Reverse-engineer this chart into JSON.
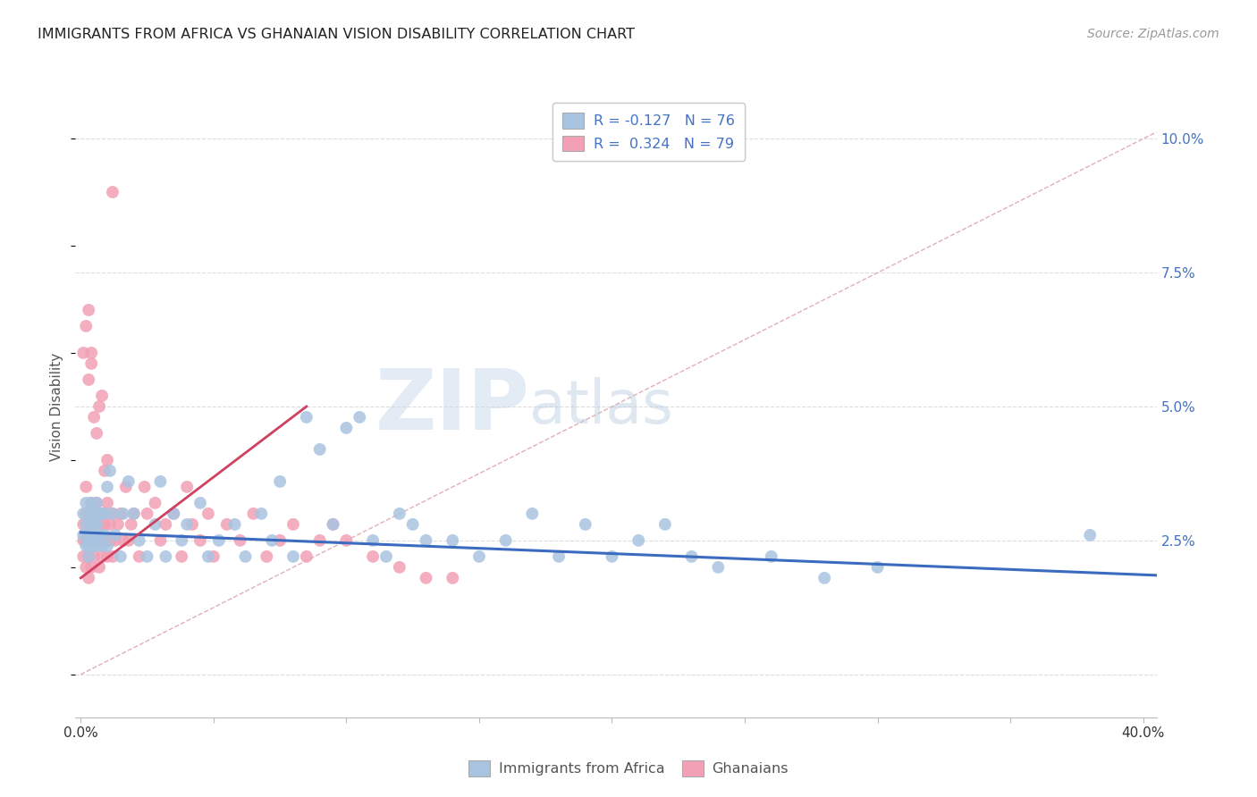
{
  "title": "IMMIGRANTS FROM AFRICA VS GHANAIAN VISION DISABILITY CORRELATION CHART",
  "source": "Source: ZipAtlas.com",
  "ylabel": "Vision Disability",
  "y_ticks": [
    0.0,
    0.025,
    0.05,
    0.075,
    0.1
  ],
  "y_tick_labels": [
    "",
    "2.5%",
    "5.0%",
    "7.5%",
    "10.0%"
  ],
  "x_lim": [
    -0.002,
    0.405
  ],
  "y_lim": [
    -0.008,
    0.108
  ],
  "legend_label_blue": "Immigrants from Africa",
  "legend_label_pink": "Ghanaians",
  "blue_color": "#a8c4e0",
  "pink_color": "#f2a0b5",
  "blue_line_color": "#3a6bbf",
  "pink_line_color": "#d04060",
  "dashed_line_color": "#e0b0b8",
  "watermark_zip": "ZIP",
  "watermark_atlas": "atlas",
  "blue_trend_x": [
    0.0,
    0.405
  ],
  "blue_trend_y": [
    0.0265,
    0.0185
  ],
  "pink_trend_x": [
    0.0,
    0.085
  ],
  "pink_trend_y": [
    0.018,
    0.05
  ],
  "diag_line_x": [
    0.0,
    0.405
  ],
  "diag_line_y": [
    0.0,
    0.1012
  ],
  "blue_x": [
    0.001,
    0.001,
    0.002,
    0.002,
    0.002,
    0.003,
    0.003,
    0.003,
    0.003,
    0.004,
    0.004,
    0.004,
    0.005,
    0.005,
    0.005,
    0.005,
    0.006,
    0.006,
    0.006,
    0.007,
    0.007,
    0.008,
    0.008,
    0.009,
    0.009,
    0.01,
    0.01,
    0.011,
    0.012,
    0.013,
    0.015,
    0.016,
    0.018,
    0.02,
    0.022,
    0.025,
    0.028,
    0.03,
    0.032,
    0.035,
    0.038,
    0.04,
    0.045,
    0.048,
    0.052,
    0.058,
    0.062,
    0.068,
    0.072,
    0.075,
    0.08,
    0.085,
    0.09,
    0.095,
    0.1,
    0.105,
    0.11,
    0.115,
    0.12,
    0.125,
    0.13,
    0.14,
    0.15,
    0.16,
    0.17,
    0.18,
    0.19,
    0.2,
    0.21,
    0.22,
    0.23,
    0.24,
    0.26,
    0.28,
    0.3,
    0.38
  ],
  "blue_y": [
    0.026,
    0.03,
    0.024,
    0.028,
    0.032,
    0.022,
    0.026,
    0.03,
    0.024,
    0.025,
    0.028,
    0.032,
    0.024,
    0.026,
    0.03,
    0.028,
    0.024,
    0.028,
    0.032,
    0.026,
    0.03,
    0.024,
    0.03,
    0.026,
    0.03,
    0.024,
    0.035,
    0.038,
    0.03,
    0.026,
    0.022,
    0.03,
    0.036,
    0.03,
    0.025,
    0.022,
    0.028,
    0.036,
    0.022,
    0.03,
    0.025,
    0.028,
    0.032,
    0.022,
    0.025,
    0.028,
    0.022,
    0.03,
    0.025,
    0.036,
    0.022,
    0.048,
    0.042,
    0.028,
    0.046,
    0.048,
    0.025,
    0.022,
    0.03,
    0.028,
    0.025,
    0.025,
    0.022,
    0.025,
    0.03,
    0.022,
    0.028,
    0.022,
    0.025,
    0.028,
    0.022,
    0.02,
    0.022,
    0.018,
    0.02,
    0.026
  ],
  "pink_x": [
    0.001,
    0.001,
    0.001,
    0.002,
    0.002,
    0.002,
    0.002,
    0.003,
    0.003,
    0.003,
    0.003,
    0.004,
    0.004,
    0.004,
    0.005,
    0.005,
    0.005,
    0.006,
    0.006,
    0.007,
    0.007,
    0.008,
    0.008,
    0.009,
    0.009,
    0.01,
    0.01,
    0.011,
    0.011,
    0.012,
    0.012,
    0.013,
    0.014,
    0.015,
    0.016,
    0.017,
    0.018,
    0.019,
    0.02,
    0.022,
    0.024,
    0.025,
    0.028,
    0.03,
    0.032,
    0.035,
    0.038,
    0.04,
    0.042,
    0.045,
    0.048,
    0.05,
    0.055,
    0.06,
    0.065,
    0.07,
    0.075,
    0.08,
    0.085,
    0.09,
    0.095,
    0.1,
    0.11,
    0.12,
    0.13,
    0.14,
    0.001,
    0.002,
    0.003,
    0.003,
    0.004,
    0.004,
    0.005,
    0.006,
    0.007,
    0.008,
    0.009,
    0.01,
    0.012
  ],
  "pink_y": [
    0.025,
    0.028,
    0.022,
    0.03,
    0.025,
    0.02,
    0.035,
    0.028,
    0.022,
    0.03,
    0.018,
    0.025,
    0.032,
    0.02,
    0.028,
    0.022,
    0.03,
    0.025,
    0.032,
    0.028,
    0.02,
    0.025,
    0.022,
    0.028,
    0.03,
    0.022,
    0.032,
    0.025,
    0.028,
    0.022,
    0.03,
    0.025,
    0.028,
    0.03,
    0.025,
    0.035,
    0.025,
    0.028,
    0.03,
    0.022,
    0.035,
    0.03,
    0.032,
    0.025,
    0.028,
    0.03,
    0.022,
    0.035,
    0.028,
    0.025,
    0.03,
    0.022,
    0.028,
    0.025,
    0.03,
    0.022,
    0.025,
    0.028,
    0.022,
    0.025,
    0.028,
    0.025,
    0.022,
    0.02,
    0.018,
    0.018,
    0.06,
    0.065,
    0.068,
    0.055,
    0.06,
    0.058,
    0.048,
    0.045,
    0.05,
    0.052,
    0.038,
    0.04,
    0.09
  ],
  "x_tick_positions": [
    0.0,
    0.05,
    0.1,
    0.15,
    0.2,
    0.25,
    0.3,
    0.35,
    0.4
  ],
  "x_tick_labels": [
    "0.0%",
    "",
    "",
    "",
    "",
    "",
    "",
    "",
    "40.0%"
  ]
}
